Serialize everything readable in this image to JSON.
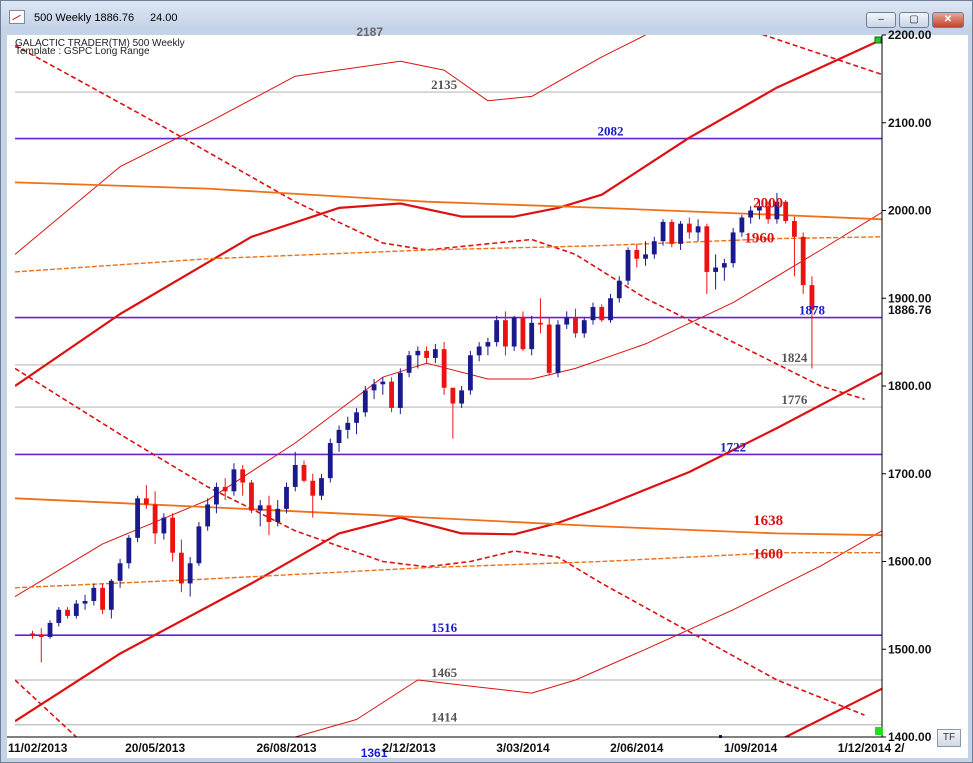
{
  "window": {
    "title_symbol": "500 Weekly 1886.76",
    "title_value": "24.00",
    "buttons": {
      "minimize": "–",
      "maximize": "▢",
      "close": "✕"
    }
  },
  "chart_header": {
    "line1": "GALACTIC TRADER(TM)     500 Weekly",
    "line2": "Template : GSPC Long Range"
  },
  "tf_label": "TF",
  "chart_data": {
    "type": "candlestick",
    "title": "500 Weekly",
    "current_price": 1886.76,
    "current_price_label": "1886.76",
    "ylim": [
      1400,
      2200
    ],
    "y_ticks": [
      1400,
      1500,
      1600,
      1700,
      1800,
      1900,
      2000,
      2100,
      2200
    ],
    "y_tick_labels": [
      "1400.00",
      "1500.00",
      "1600.00",
      "1700.00",
      "1800.00",
      "1900.00",
      "2000.00",
      "2100.00",
      "2200.00"
    ],
    "x_tick_labels": [
      "11/02/2013",
      "20/05/2013",
      "26/08/2013",
      "2/12/2013",
      "3/03/2014",
      "2/06/2014",
      "1/09/2014",
      "1/12/2014",
      "2/"
    ],
    "x_range_weeks": [
      -2,
      97
    ],
    "price_levels": [
      {
        "value": 2135,
        "label": "2135",
        "color": "#555555",
        "label_week": 47,
        "line": "#bbbbbb"
      },
      {
        "value": 2082,
        "label": "2082",
        "color": "#1a1acc",
        "label_week": 66,
        "line": "#6622cc"
      },
      {
        "value": 2000,
        "label": "2000",
        "color": "#dd1111",
        "label_week": 84,
        "line": "orange"
      },
      {
        "value": 1960,
        "label": "1960",
        "color": "#dd1111",
        "label_week": 83,
        "line": "orange"
      },
      {
        "value": 1878,
        "label": "1878",
        "color": "#1a1acc",
        "label_week": 89,
        "line": "#6622cc"
      },
      {
        "value": 1824,
        "label": "1824",
        "color": "#555555",
        "label_week": 87,
        "line": "#bbbbbb"
      },
      {
        "value": 1776,
        "label": "1776",
        "color": "#555555",
        "label_week": 87,
        "line": "#bbbbbb"
      },
      {
        "value": 1722,
        "label": "1722",
        "color": "#1a1acc",
        "label_week": 80,
        "line": "#6622cc"
      },
      {
        "value": 1638,
        "label": "1638",
        "color": "#dd1111",
        "label_week": 84,
        "line": "orange"
      },
      {
        "value": 1600,
        "label": "1600",
        "color": "#dd1111",
        "label_week": 84,
        "line": "orange"
      },
      {
        "value": 1516,
        "label": "1516",
        "color": "#1a1acc",
        "label_week": 47,
        "line": "#6622cc"
      },
      {
        "value": 1465,
        "label": "1465",
        "color": "#555555",
        "label_week": 47,
        "line": "#bbbbbb"
      },
      {
        "value": 1414,
        "label": "1414",
        "color": "#555555",
        "label_week": 47,
        "line": "#bbbbbb"
      }
    ],
    "candles": [
      [
        1518,
        1521,
        1512,
        1517
      ],
      [
        1517,
        1524,
        1485,
        1514
      ],
      [
        1514,
        1533,
        1512,
        1530
      ],
      [
        1530,
        1548,
        1526,
        1545
      ],
      [
        1545,
        1548,
        1535,
        1538
      ],
      [
        1538,
        1556,
        1535,
        1552
      ],
      [
        1552,
        1562,
        1545,
        1555
      ],
      [
        1555,
        1575,
        1550,
        1570
      ],
      [
        1570,
        1575,
        1540,
        1545
      ],
      [
        1545,
        1580,
        1535,
        1578
      ],
      [
        1578,
        1603,
        1570,
        1598
      ],
      [
        1598,
        1630,
        1592,
        1627
      ],
      [
        1627,
        1675,
        1622,
        1672
      ],
      [
        1672,
        1687,
        1660,
        1665
      ],
      [
        1665,
        1680,
        1620,
        1632
      ],
      [
        1632,
        1655,
        1625,
        1650
      ],
      [
        1650,
        1655,
        1600,
        1610
      ],
      [
        1610,
        1625,
        1565,
        1575
      ],
      [
        1575,
        1605,
        1560,
        1598
      ],
      [
        1598,
        1645,
        1595,
        1640
      ],
      [
        1640,
        1672,
        1635,
        1665
      ],
      [
        1665,
        1690,
        1655,
        1685
      ],
      [
        1685,
        1695,
        1670,
        1680
      ],
      [
        1680,
        1712,
        1675,
        1705
      ],
      [
        1705,
        1710,
        1675,
        1690
      ],
      [
        1690,
        1693,
        1655,
        1658
      ],
      [
        1658,
        1670,
        1640,
        1664
      ],
      [
        1664,
        1675,
        1630,
        1645
      ],
      [
        1645,
        1670,
        1640,
        1660
      ],
      [
        1660,
        1690,
        1655,
        1685
      ],
      [
        1685,
        1725,
        1680,
        1710
      ],
      [
        1710,
        1715,
        1690,
        1692
      ],
      [
        1692,
        1700,
        1650,
        1675
      ],
      [
        1675,
        1700,
        1670,
        1695
      ],
      [
        1695,
        1740,
        1690,
        1735
      ],
      [
        1735,
        1755,
        1725,
        1750
      ],
      [
        1750,
        1765,
        1740,
        1758
      ],
      [
        1758,
        1775,
        1745,
        1770
      ],
      [
        1770,
        1800,
        1765,
        1795
      ],
      [
        1795,
        1808,
        1785,
        1802
      ],
      [
        1802,
        1810,
        1790,
        1805
      ],
      [
        1805,
        1810,
        1770,
        1775
      ],
      [
        1775,
        1820,
        1768,
        1815
      ],
      [
        1815,
        1840,
        1810,
        1835
      ],
      [
        1835,
        1845,
        1820,
        1840
      ],
      [
        1840,
        1845,
        1825,
        1832
      ],
      [
        1832,
        1848,
        1826,
        1842
      ],
      [
        1842,
        1850,
        1790,
        1798
      ],
      [
        1798,
        1798,
        1740,
        1780
      ],
      [
        1780,
        1800,
        1775,
        1795
      ],
      [
        1795,
        1840,
        1790,
        1835
      ],
      [
        1835,
        1850,
        1828,
        1845
      ],
      [
        1845,
        1855,
        1835,
        1850
      ],
      [
        1850,
        1880,
        1845,
        1875
      ],
      [
        1875,
        1885,
        1835,
        1845
      ],
      [
        1845,
        1880,
        1840,
        1878
      ],
      [
        1878,
        1885,
        1840,
        1842
      ],
      [
        1842,
        1880,
        1835,
        1872
      ],
      [
        1872,
        1900,
        1860,
        1870
      ],
      [
        1870,
        1878,
        1812,
        1815
      ],
      [
        1815,
        1875,
        1810,
        1870
      ],
      [
        1870,
        1885,
        1865,
        1878
      ],
      [
        1878,
        1888,
        1855,
        1860
      ],
      [
        1860,
        1878,
        1855,
        1875
      ],
      [
        1875,
        1895,
        1870,
        1890
      ],
      [
        1890,
        1893,
        1873,
        1875
      ],
      [
        1875,
        1905,
        1872,
        1900
      ],
      [
        1900,
        1925,
        1895,
        1920
      ],
      [
        1920,
        1958,
        1915,
        1955
      ],
      [
        1955,
        1962,
        1935,
        1945
      ],
      [
        1945,
        1965,
        1937,
        1950
      ],
      [
        1950,
        1970,
        1945,
        1965
      ],
      [
        1965,
        1990,
        1960,
        1987
      ],
      [
        1987,
        1990,
        1958,
        1962
      ],
      [
        1962,
        1988,
        1955,
        1985
      ],
      [
        1985,
        1992,
        1968,
        1975
      ],
      [
        1975,
        1990,
        1965,
        1982
      ],
      [
        1982,
        1985,
        1905,
        1930
      ],
      [
        1930,
        1950,
        1910,
        1935
      ],
      [
        1935,
        1945,
        1920,
        1940
      ],
      [
        1940,
        1980,
        1935,
        1975
      ],
      [
        1975,
        1995,
        1970,
        1992
      ],
      [
        1992,
        2005,
        1985,
        2000
      ],
      [
        2000,
        2012,
        1990,
        2005
      ],
      [
        2005,
        2010,
        1985,
        1990
      ],
      [
        1990,
        2020,
        1985,
        2010
      ],
      [
        2010,
        2012,
        1985,
        1988
      ],
      [
        1988,
        1993,
        1925,
        1970
      ],
      [
        1970,
        1975,
        1905,
        1915
      ],
      [
        1915,
        1925,
        1820,
        1886.76
      ]
    ],
    "bands": [
      {
        "name": "upper-red-solid",
        "color": "#dd1111",
        "width": 2.2,
        "dash": "",
        "pts": [
          [
            -2,
            1800
          ],
          [
            10,
            1882
          ],
          [
            25,
            1970
          ],
          [
            35,
            2003
          ],
          [
            42,
            2008
          ],
          [
            49,
            1993
          ],
          [
            55,
            1993
          ],
          [
            60,
            2003
          ],
          [
            65,
            2018
          ],
          [
            75,
            2083
          ],
          [
            85,
            2140
          ],
          [
            97,
            2195
          ]
        ]
      },
      {
        "name": "lower-red-solid",
        "color": "#dd1111",
        "width": 2.2,
        "dash": "",
        "pts": [
          [
            -2,
            1418
          ],
          [
            10,
            1495
          ],
          [
            25,
            1575
          ],
          [
            35,
            1632
          ],
          [
            42,
            1650
          ],
          [
            49,
            1632
          ],
          [
            55,
            1631
          ],
          [
            60,
            1644
          ],
          [
            65,
            1662
          ],
          [
            75,
            1702
          ],
          [
            85,
            1752
          ],
          [
            97,
            1815
          ]
        ]
      },
      {
        "name": "upper-red-dashed",
        "color": "#dd1111",
        "width": 1.6,
        "dash": "5,3",
        "pts": [
          [
            -2,
            2188
          ],
          [
            5,
            2150
          ],
          [
            15,
            2095
          ],
          [
            30,
            2010
          ],
          [
            40,
            1963
          ],
          [
            45,
            1955
          ],
          [
            52,
            1962
          ],
          [
            57,
            1967
          ],
          [
            62,
            1950
          ],
          [
            70,
            1900
          ],
          [
            80,
            1850
          ],
          [
            90,
            1800
          ],
          [
            95,
            1785
          ]
        ]
      },
      {
        "name": "lower-red-dashed",
        "color": "#dd1111",
        "width": 1.6,
        "dash": "5,3",
        "pts": [
          [
            -2,
            1820
          ],
          [
            10,
            1745
          ],
          [
            20,
            1685
          ],
          [
            30,
            1635
          ],
          [
            40,
            1600
          ],
          [
            45,
            1594
          ],
          [
            50,
            1600
          ],
          [
            55,
            1612
          ],
          [
            60,
            1605
          ],
          [
            65,
            1575
          ],
          [
            75,
            1520
          ],
          [
            85,
            1465
          ],
          [
            95,
            1425
          ]
        ]
      },
      {
        "name": "upper-red-thin",
        "color": "#dd1111",
        "width": 1,
        "dash": "",
        "pts": [
          [
            -2,
            1950
          ],
          [
            10,
            2050
          ],
          [
            20,
            2100
          ],
          [
            30,
            2153
          ],
          [
            42,
            2170
          ],
          [
            47,
            2160
          ],
          [
            52,
            2125
          ],
          [
            57,
            2130
          ],
          [
            65,
            2175
          ],
          [
            70,
            2200
          ]
        ]
      },
      {
        "name": "mid-red-thin",
        "color": "#dd1111",
        "width": 1,
        "dash": "",
        "pts": [
          [
            -2,
            1560
          ],
          [
            8,
            1620
          ],
          [
            20,
            1670
          ],
          [
            30,
            1735
          ],
          [
            40,
            1810
          ],
          [
            45,
            1826
          ],
          [
            52,
            1808
          ],
          [
            57,
            1808
          ],
          [
            62,
            1820
          ],
          [
            70,
            1848
          ],
          [
            80,
            1895
          ],
          [
            90,
            1955
          ],
          [
            97,
            1998
          ]
        ]
      },
      {
        "name": "lower-red-thin",
        "color": "#dd1111",
        "width": 1,
        "dash": "",
        "pts": [
          [
            30,
            1400
          ],
          [
            37,
            1420
          ],
          [
            44,
            1465
          ],
          [
            50,
            1458
          ],
          [
            57,
            1450
          ],
          [
            62,
            1465
          ],
          [
            70,
            1500
          ],
          [
            80,
            1545
          ],
          [
            90,
            1595
          ],
          [
            97,
            1635
          ]
        ]
      },
      {
        "name": "orange-upper",
        "color": "#f07018",
        "width": 1.8,
        "dash": "",
        "pts": [
          [
            -2,
            2032
          ],
          [
            20,
            2025
          ],
          [
            45,
            2010
          ],
          [
            65,
            2003
          ],
          [
            85,
            1995
          ],
          [
            97,
            1990
          ]
        ]
      },
      {
        "name": "orange-upper-dashed",
        "color": "#f07018",
        "width": 1.4,
        "dash": "5,2",
        "pts": [
          [
            -2,
            1930
          ],
          [
            20,
            1945
          ],
          [
            45,
            1955
          ],
          [
            65,
            1960
          ],
          [
            85,
            1968
          ],
          [
            97,
            1970
          ]
        ]
      },
      {
        "name": "orange-lower",
        "color": "#f07018",
        "width": 1.8,
        "dash": "",
        "pts": [
          [
            -2,
            1672
          ],
          [
            20,
            1662
          ],
          [
            45,
            1650
          ],
          [
            65,
            1640
          ],
          [
            85,
            1632
          ],
          [
            97,
            1630
          ]
        ]
      },
      {
        "name": "orange-lower-dashed",
        "color": "#f07018",
        "width": 1.4,
        "dash": "5,2",
        "pts": [
          [
            -2,
            1570
          ],
          [
            20,
            1580
          ],
          [
            45,
            1593
          ],
          [
            65,
            1600
          ],
          [
            85,
            1610
          ],
          [
            97,
            1610
          ]
        ]
      },
      {
        "name": "red-dashed-far",
        "color": "#dd1111",
        "width": 1.6,
        "dash": "5,3",
        "pts": [
          [
            -2,
            1465
          ],
          [
            5,
            1400
          ]
        ]
      },
      {
        "name": "red-dashed-top-right",
        "color": "#dd1111",
        "width": 1.6,
        "dash": "5,3",
        "pts": [
          [
            79,
            2215
          ],
          [
            97,
            2155
          ]
        ]
      },
      {
        "name": "red-solid-bottom-right",
        "color": "#dd1111",
        "width": 2.2,
        "dash": "",
        "pts": [
          [
            85,
            1395
          ],
          [
            97,
            1455
          ]
        ]
      }
    ],
    "partial_labels": [
      "2187",
      "1361"
    ],
    "up_color": "#1a1a8c",
    "down_color": "#ee1111"
  }
}
